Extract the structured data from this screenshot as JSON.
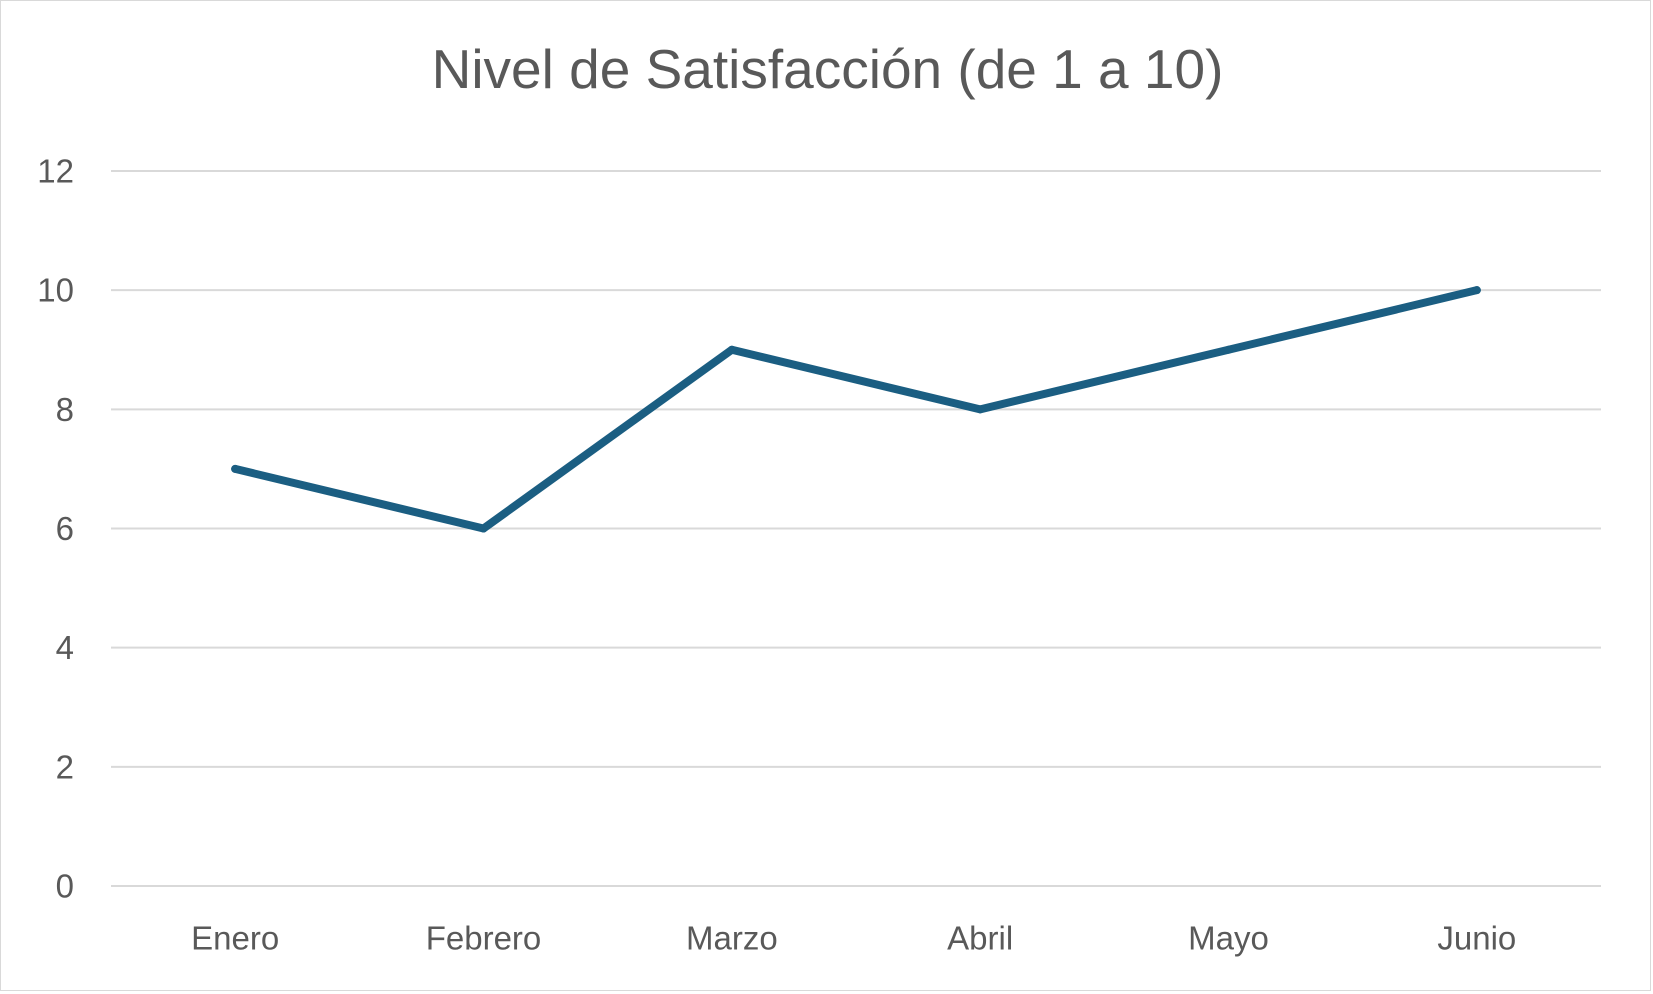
{
  "chart_data": {
    "type": "line",
    "title": "Nivel de Satisfacción (de 1 a 10)",
    "xlabel": "",
    "ylabel": "",
    "categories": [
      "Enero",
      "Febrero",
      "Marzo",
      "Abril",
      "Mayo",
      "Junio"
    ],
    "series": [
      {
        "values": [
          7,
          6,
          9,
          8,
          9,
          10
        ]
      }
    ],
    "ylim": [
      0,
      12
    ],
    "y_ticks": [
      "0",
      "2",
      "4",
      "6",
      "8",
      "10",
      "12"
    ],
    "grid": true,
    "legend": "none",
    "colors": {
      "series": "#1b5e82",
      "grid": "#d9d9d9",
      "text": "#595959"
    }
  }
}
